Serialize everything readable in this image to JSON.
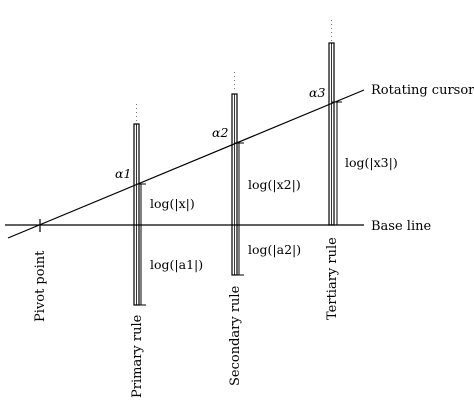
{
  "diagram": {
    "lines": {
      "rotating_cursor_label": "Rotating cursor",
      "base_line_label": "Base line"
    },
    "pivot_label": "Pivot point",
    "rules": [
      {
        "label": "Primary rule",
        "alpha_label": "α1"
      },
      {
        "label": "Secondary rule",
        "alpha_label": "α2"
      },
      {
        "label": "Tertiary rule",
        "alpha_label": "α3"
      }
    ],
    "measures": {
      "log_x": "log(|x|)",
      "log_a1": "log(|a1|)",
      "log_x2": "log(|x2|)",
      "log_a2": "log(|a2|)",
      "log_x3": "log(|x3|)"
    }
  }
}
